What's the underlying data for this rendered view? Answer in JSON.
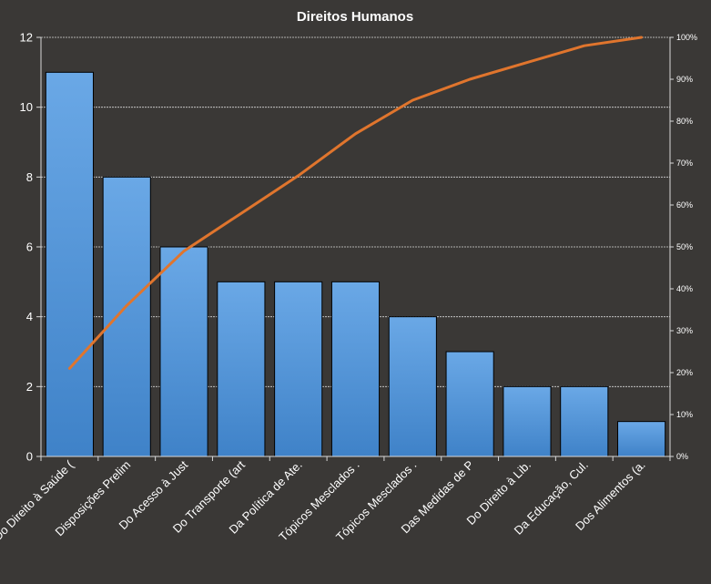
{
  "colors": {
    "background": "#3a3836",
    "bar_fill_top": "#6aa8e6",
    "bar_fill_bottom": "#3f82c8",
    "bar_stroke": "#000000",
    "line": "#e0752d",
    "grid": "#d8d8d8",
    "text": "#ffffff"
  },
  "chart_data": {
    "type": "bar",
    "title": "Direitos  Humanos",
    "categories": [
      "Do Direito à Saúde (",
      "Disposições Prelim",
      "Do Acesso à Just",
      "Do Transporte (art",
      "Da Política de Ate.",
      "Tópicos Mesclados .",
      "Tópicos Mesclados .",
      "Das Medidas de P",
      "Do Direito à Lib.",
      "Da Educação, Cul.",
      "Dos Alimentos (a."
    ],
    "series": [
      {
        "values": [
          11,
          8,
          6,
          5,
          5,
          5,
          4,
          3,
          2,
          2,
          1
        ]
      },
      {
        "type": "line",
        "axis": "right",
        "values": [
          21,
          36,
          49,
          58,
          67,
          77,
          85,
          90,
          94,
          98,
          100
        ]
      }
    ],
    "ylim": [
      0,
      12
    ],
    "yticks": [
      "0",
      "2",
      "4",
      "6",
      "8",
      "10",
      "12"
    ],
    "y2lim": [
      0,
      100
    ],
    "y2ticks": [
      "0%",
      "10%",
      "20%",
      "30%",
      "40%",
      "50%",
      "60%",
      "70%",
      "80%",
      "90%",
      "100%"
    ],
    "grid": true,
    "legend": "none"
  }
}
